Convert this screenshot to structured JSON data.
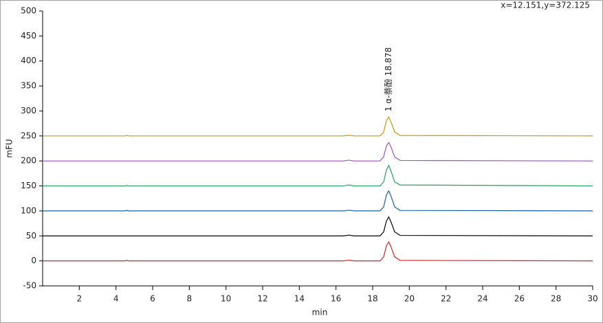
{
  "chart_data": {
    "type": "line",
    "cursor_readout": "x=12.151,y=372.125",
    "x_label": "min",
    "y_label": "mFU",
    "annotation": {
      "text": "1  α-萘酚 18.878",
      "x": 18.878
    },
    "x": [
      0,
      4.5,
      4.6,
      4.7,
      16.4,
      16.7,
      17.0,
      18.4,
      18.6,
      18.75,
      18.878,
      19.0,
      19.2,
      19.5,
      30
    ],
    "series": [
      {
        "color": "#c8960a",
        "values": [
          250,
          250,
          251,
          250,
          250,
          251.5,
          250,
          250,
          258,
          280,
          288,
          278,
          258,
          251,
          250
        ]
      },
      {
        "color": "#a050c8",
        "values": [
          200,
          200,
          200,
          200,
          200,
          201.5,
          200,
          200,
          208,
          230,
          237,
          228,
          208,
          201,
          200
        ]
      },
      {
        "color": "#20a060",
        "values": [
          150,
          150,
          151,
          150,
          150,
          152,
          150,
          150,
          158,
          182,
          191,
          180,
          158,
          152,
          150
        ]
      },
      {
        "color": "#1060b0",
        "values": [
          100,
          100,
          101,
          100,
          100,
          101.5,
          100,
          100,
          108,
          132,
          140,
          130,
          108,
          101,
          100
        ]
      },
      {
        "color": "#000000",
        "values": [
          50,
          50,
          50,
          50,
          50,
          51.5,
          50,
          50,
          58,
          80,
          88,
          78,
          58,
          51,
          50
        ]
      },
      {
        "color": "#e02020",
        "values": [
          0,
          0,
          1,
          0,
          0,
          1.5,
          0,
          0,
          8,
          30,
          38,
          28,
          8,
          1,
          0
        ]
      }
    ],
    "xlim": [
      0,
      30
    ],
    "xticks": [
      2,
      4,
      6,
      8,
      10,
      12,
      14,
      16,
      18,
      20,
      22,
      24,
      26,
      28,
      30
    ],
    "ylim": [
      -50,
      500
    ],
    "yticks": [
      -50,
      0,
      50,
      100,
      150,
      200,
      250,
      300,
      350,
      400,
      450,
      500
    ]
  }
}
